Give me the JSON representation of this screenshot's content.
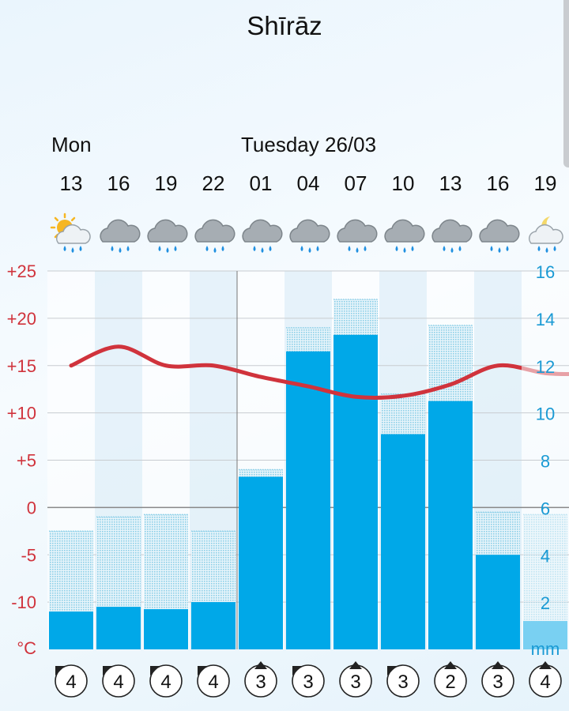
{
  "title": "Shīrāz",
  "day_labels": [
    {
      "text": "Mon",
      "slot": 0
    },
    {
      "text": "Tuesday 26/03",
      "slot": 4
    }
  ],
  "colors": {
    "temperature_line": "#d0333c",
    "temperature_axis": "#d0333c",
    "precip_axis": "#1a9ad4",
    "precip_bar": "#00a8e8",
    "precip_range": "#8ccfe8",
    "grid": "#c8ccd0"
  },
  "icons": [
    "sun-cloud-rain-icon",
    "cloud-rain-icon",
    "cloud-rain-icon",
    "cloud-rain-icon",
    "cloud-rain-icon",
    "cloud-rain-icon",
    "cloud-rain-icon",
    "cloud-rain-icon",
    "cloud-rain-icon",
    "cloud-rain-icon",
    "moon-cloud-rain-icon"
  ],
  "chart_data": {
    "type": "bar",
    "categories": [
      "13",
      "16",
      "19",
      "22",
      "01",
      "04",
      "07",
      "10",
      "13",
      "16",
      "19"
    ],
    "y_left": {
      "ticks": [
        "+25",
        "+20",
        "+15",
        "+10",
        "+5",
        "0",
        "-5",
        "-10",
        "°C"
      ],
      "range": [
        -15,
        25
      ],
      "unit": "°C"
    },
    "y_right": {
      "ticks": [
        "16",
        "14",
        "12",
        "10",
        "8",
        "6",
        "4",
        "2",
        "mm"
      ],
      "range": [
        0,
        16
      ],
      "unit": "mm"
    },
    "series": [
      {
        "type": "bar",
        "axis": "right",
        "values": [
          1.6,
          1.8,
          1.7,
          2.0,
          7.3,
          12.6,
          13.3,
          9.1,
          10.5,
          4.0,
          1.2
        ]
      },
      {
        "type": "range",
        "axis": "right",
        "values": [
          5.0,
          5.6,
          5.7,
          5.0,
          7.6,
          13.6,
          14.8,
          10.8,
          13.7,
          5.8,
          5.7
        ]
      },
      {
        "type": "line",
        "axis": "left",
        "values": [
          15.0,
          17.0,
          15.0,
          15.0,
          13.8,
          12.8,
          11.7,
          11.8,
          13.0,
          15.0,
          14.2
        ]
      }
    ],
    "grid": true,
    "footer_values": [
      "4",
      "4",
      "4",
      "4",
      "3",
      "3",
      "3",
      "3",
      "2",
      "3",
      "4"
    ]
  }
}
